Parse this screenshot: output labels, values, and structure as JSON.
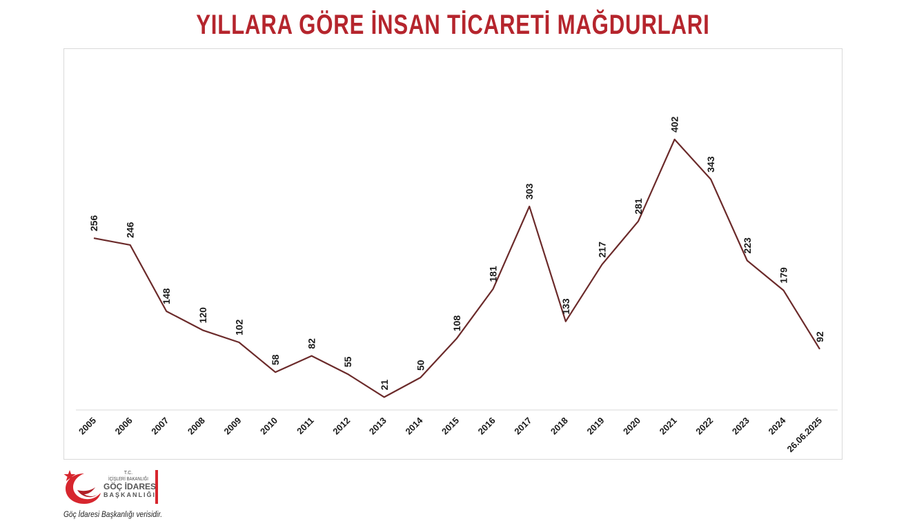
{
  "colors": {
    "title": "#b5252d",
    "line": "#6b2a2a",
    "label": "#1a1a1a",
    "axis": "#d9d9d9",
    "accent_red": "#d7262e"
  },
  "chart_data": {
    "type": "line",
    "title": "YILLARA GÖRE İNSAN TİCARETİ MAĞDURLARI",
    "xlabel": "",
    "ylabel": "",
    "categories": [
      "2005",
      "2006",
      "2007",
      "2008",
      "2009",
      "2010",
      "2011",
      "2012",
      "2013",
      "2014",
      "2015",
      "2016",
      "2017",
      "2018",
      "2019",
      "2020",
      "2021",
      "2022",
      "2023",
      "2024",
      "26.06.2025"
    ],
    "series": [
      {
        "values": [
          256,
          246,
          148,
          120,
          102,
          58,
          82,
          55,
          21,
          50,
          108,
          181,
          303,
          133,
          217,
          281,
          402,
          343,
          223,
          179,
          92
        ]
      }
    ],
    "data_labels": true,
    "gridlines": false,
    "legend": "none",
    "ylim": [
      0,
      450
    ]
  },
  "logo": {
    "tc": "T.C.",
    "ministry": "İÇİŞLERİ BAKANLIĞI",
    "org": "GÖÇ İDARESİ",
    "dept": "BAŞKANLIĞI",
    "icon": "crescent-star-icon"
  },
  "source_note": "Göç İdaresi Başkanlığı verisidir."
}
